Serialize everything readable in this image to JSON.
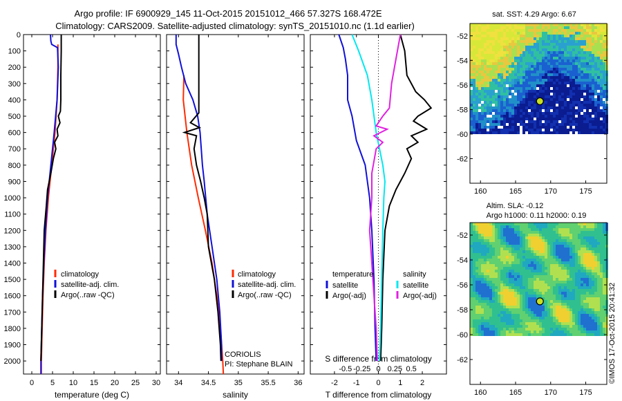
{
  "title": {
    "line1": "Argo profile: IF 6900929_145 11-Oct-2015 20151012_466 57.327S 168.472E",
    "line2": "Climatology: CARS2009. Satellite-adjusted climatology: synTS_20151010.nc (1.1d earlier)"
  },
  "colors": {
    "climatology": "#ff2a00",
    "satellite": "#1010d8",
    "argo": "#000000",
    "sat_salinity": "#00e8f0",
    "argo_salinity_diff": "#e020e0"
  },
  "credit": "©IMOS 17-Oct-2015 20:41:32",
  "chart_data": [
    {
      "type": "line",
      "name": "temperature profile",
      "xlabel": "temperature (deg C)",
      "ylabel": "",
      "xlim": [
        -2,
        31
      ],
      "ylim": [
        2080,
        0
      ],
      "x_ticks": [
        "0",
        "5",
        "10",
        "15",
        "20",
        "25",
        "30"
      ],
      "y_ticks": [
        "0",
        "100",
        "200",
        "300",
        "400",
        "500",
        "600",
        "700",
        "800",
        "900",
        "1000",
        "1100",
        "1200",
        "1300",
        "1400",
        "1500",
        "1600",
        "1700",
        "1800",
        "1900",
        "2000"
      ],
      "legend": [
        "climatology",
        "satellite-adj. clim.",
        "Argo(..raw -QC)"
      ],
      "legend_position": "lower-center",
      "series": [
        {
          "name": "climatology",
          "color": "#ff2a00",
          "points": [
            [
              6.3,
              60
            ],
            [
              6.3,
              200
            ],
            [
              6.1,
              400
            ],
            [
              5.6,
              600
            ],
            [
              4.8,
              800
            ],
            [
              4.0,
              1000
            ],
            [
              3.4,
              1200
            ],
            [
              3.0,
              1400
            ],
            [
              2.7,
              1600
            ],
            [
              2.5,
              1800
            ],
            [
              2.3,
              2000
            ],
            [
              2.3,
              2080
            ]
          ]
        },
        {
          "name": "satellite-adj. clim.",
          "color": "#1010d8",
          "points": [
            [
              4.5,
              0
            ],
            [
              4.6,
              40
            ],
            [
              4.8,
              60
            ],
            [
              6.2,
              80
            ],
            [
              6.4,
              200
            ],
            [
              6.1,
              400
            ],
            [
              5.4,
              600
            ],
            [
              4.6,
              800
            ],
            [
              3.8,
              1000
            ],
            [
              3.3,
              1200
            ],
            [
              2.9,
              1400
            ],
            [
              2.6,
              1600
            ],
            [
              2.4,
              1800
            ],
            [
              2.2,
              2000
            ],
            [
              2.2,
              2080
            ]
          ]
        },
        {
          "name": "Argo(..raw -QC)",
          "color": "#000000",
          "points": [
            [
              7.1,
              0
            ],
            [
              7.1,
              100
            ],
            [
              7.0,
              250
            ],
            [
              7.0,
              400
            ],
            [
              6.9,
              470
            ],
            [
              6.4,
              500
            ],
            [
              6.8,
              540
            ],
            [
              6.1,
              580
            ],
            [
              6.3,
              620
            ],
            [
              5.5,
              660
            ],
            [
              5.8,
              700
            ],
            [
              5.2,
              760
            ],
            [
              4.6,
              850
            ],
            [
              3.8,
              950
            ],
            [
              3.5,
              1050
            ],
            [
              3.0,
              1200
            ],
            [
              2.8,
              1400
            ],
            [
              2.6,
              1600
            ],
            [
              2.4,
              1800
            ],
            [
              2.2,
              2000
            ]
          ]
        }
      ]
    },
    {
      "type": "line",
      "name": "salinity profile",
      "xlabel": "salinity",
      "xlim": [
        33.8,
        36.1
      ],
      "ylim": [
        2080,
        0
      ],
      "x_ticks": [
        "34",
        "34.5",
        "35",
        "35.5",
        "36"
      ],
      "legend": [
        "climatology",
        "satellite-adj. clim.",
        "Argo(..raw -QC)"
      ],
      "legend_position": "lower-right",
      "annotations": [
        "CORIOLIS",
        "PI: Stephane BLAIN"
      ],
      "series": [
        {
          "name": "climatology",
          "color": "#ff2a00",
          "points": [
            [
              34.09,
              250
            ],
            [
              34.08,
              400
            ],
            [
              34.14,
              600
            ],
            [
              34.22,
              800
            ],
            [
              34.33,
              1000
            ],
            [
              34.45,
              1200
            ],
            [
              34.56,
              1400
            ],
            [
              34.64,
              1600
            ],
            [
              34.7,
              1800
            ],
            [
              34.74,
              2000
            ],
            [
              34.75,
              2080
            ]
          ]
        },
        {
          "name": "satellite-adj. clim.",
          "color": "#1010d8",
          "points": [
            [
              33.96,
              0
            ],
            [
              33.96,
              60
            ],
            [
              34.0,
              120
            ],
            [
              34.05,
              200
            ],
            [
              34.12,
              300
            ],
            [
              34.24,
              400
            ],
            [
              34.32,
              500
            ],
            [
              34.36,
              600
            ],
            [
              34.38,
              700
            ],
            [
              34.4,
              800
            ],
            [
              34.43,
              900
            ],
            [
              34.48,
              1100
            ],
            [
              34.56,
              1300
            ],
            [
              34.64,
              1500
            ],
            [
              34.69,
              1700
            ],
            [
              34.72,
              1900
            ],
            [
              34.72,
              2000
            ]
          ]
        },
        {
          "name": "Argo(..raw -QC)",
          "color": "#000000",
          "points": [
            [
              34.34,
              0
            ],
            [
              34.34,
              480
            ],
            [
              34.2,
              540
            ],
            [
              34.35,
              570
            ],
            [
              34.1,
              600
            ],
            [
              34.3,
              620
            ],
            [
              34.26,
              700
            ],
            [
              34.3,
              800
            ],
            [
              34.37,
              900
            ],
            [
              34.43,
              1000
            ],
            [
              34.48,
              1100
            ],
            [
              34.5,
              1300
            ],
            [
              34.6,
              1500
            ],
            [
              34.66,
              1700
            ],
            [
              34.7,
              1900
            ],
            [
              34.71,
              2000
            ]
          ]
        }
      ]
    },
    {
      "type": "line",
      "name": "difference from climatology",
      "xlabel": "T difference from climatology",
      "x2label": "S difference from climatology",
      "xlim": [
        -3.1,
        3.1
      ],
      "ylim": [
        2080,
        0
      ],
      "x_ticks": [
        "-2",
        "-1",
        "0",
        "1",
        "2"
      ],
      "x2_ticks": [
        "-0.5",
        "-0.25",
        "0",
        "0.25",
        "0.5"
      ],
      "legend_temperature": {
        "title": "temperature",
        "items": [
          "satellite",
          "Argo(-adj)"
        ]
      },
      "legend_salinity": {
        "title": "salinity",
        "items": [
          "satellite",
          "Argo(-adj)"
        ]
      },
      "series": [
        {
          "name": "temperature satellite",
          "color": "#1010d8",
          "points": [
            [
              -1.8,
              0
            ],
            [
              -1.6,
              80
            ],
            [
              -1.5,
              150
            ],
            [
              -1.4,
              250
            ],
            [
              -1.4,
              400
            ],
            [
              -1.2,
              500
            ],
            [
              -1.0,
              650
            ],
            [
              -0.6,
              800
            ],
            [
              -0.4,
              1000
            ],
            [
              -0.3,
              1200
            ],
            [
              -0.2,
              1500
            ],
            [
              -0.15,
              1800
            ],
            [
              -0.1,
              2000
            ]
          ]
        },
        {
          "name": "temperature Argo(-adj)",
          "color": "#000000",
          "points": [
            [
              1.0,
              0
            ],
            [
              1.2,
              100
            ],
            [
              1.3,
              250
            ],
            [
              1.7,
              350
            ],
            [
              2.1,
              400
            ],
            [
              2.4,
              450
            ],
            [
              1.8,
              500
            ],
            [
              1.6,
              530
            ],
            [
              2.2,
              580
            ],
            [
              1.5,
              620
            ],
            [
              1.8,
              660
            ],
            [
              1.3,
              700
            ],
            [
              1.5,
              760
            ],
            [
              1.2,
              850
            ],
            [
              0.8,
              950
            ],
            [
              0.5,
              1050
            ],
            [
              0.3,
              1200
            ],
            [
              0.2,
              1500
            ],
            [
              0.15,
              1800
            ],
            [
              0.1,
              2000
            ]
          ]
        },
        {
          "name": "salinity satellite",
          "color": "#00e8f0",
          "points": [
            [
              -1.2,
              0
            ],
            [
              -0.9,
              100
            ],
            [
              -0.5,
              250
            ],
            [
              -0.3,
              400
            ],
            [
              -0.1,
              600
            ],
            [
              0.2,
              800
            ],
            [
              0.3,
              900
            ],
            [
              0.25,
              1000
            ],
            [
              0.2,
              1200
            ],
            [
              0.15,
              1500
            ],
            [
              0.1,
              1800
            ],
            [
              0.05,
              2000
            ]
          ]
        },
        {
          "name": "salinity Argo(-adj)",
          "color": "#e020e0",
          "points": [
            [
              1.0,
              0
            ],
            [
              0.8,
              150
            ],
            [
              0.6,
              300
            ],
            [
              0.5,
              450
            ],
            [
              0.2,
              500
            ],
            [
              -0.1,
              560
            ],
            [
              0.4,
              580
            ],
            [
              -0.2,
              620
            ],
            [
              0.2,
              660
            ],
            [
              -0.1,
              700
            ],
            [
              -0.3,
              850
            ],
            [
              -0.3,
              1000
            ],
            [
              -0.4,
              1200
            ],
            [
              -0.3,
              1400
            ],
            [
              -0.2,
              1600
            ],
            [
              -0.1,
              1800
            ],
            [
              -0.05,
              2000
            ]
          ]
        }
      ]
    },
    {
      "type": "heatmap",
      "name": "sea surface temperature map",
      "title": "sat. SST: 4.29  Argo: 6.67",
      "xlim": [
        158.5,
        178
      ],
      "ylim": [
        -64,
        -51
      ],
      "x_ticks": [
        "160",
        "165",
        "170",
        "175"
      ],
      "y_ticks": [
        "-52",
        "-54",
        "-56",
        "-58",
        "-60",
        "-62"
      ],
      "marker": {
        "lon": 168.472,
        "lat": -57.327
      }
    },
    {
      "type": "heatmap",
      "name": "sea level anomaly map",
      "title": "Altim. SLA: -0.12",
      "subtitle": "Argo h1000: 0.11 h2000: 0.19",
      "xlim": [
        158.5,
        178
      ],
      "ylim": [
        -64,
        -51
      ],
      "x_ticks": [
        "160",
        "165",
        "170",
        "175"
      ],
      "y_ticks": [
        "-52",
        "-54",
        "-56",
        "-58",
        "-60",
        "-62"
      ],
      "marker": {
        "lon": 168.472,
        "lat": -57.327
      }
    }
  ]
}
